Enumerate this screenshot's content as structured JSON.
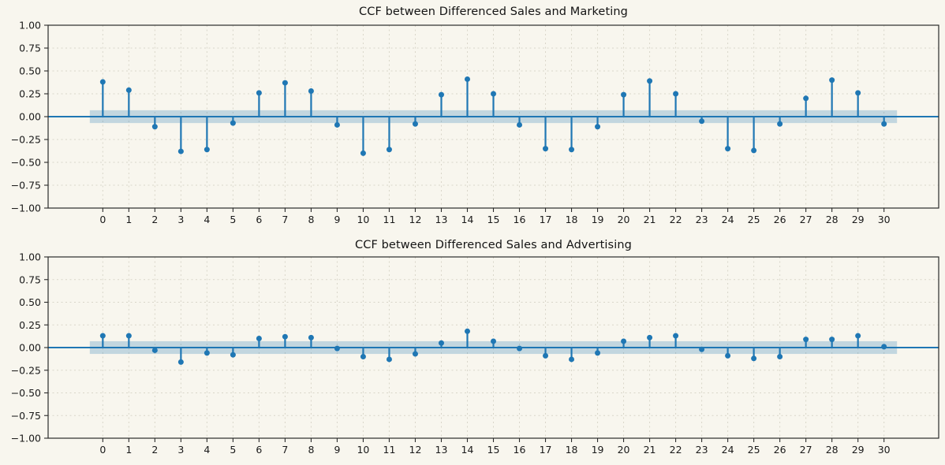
{
  "figure": {
    "background": "#f8f6ee",
    "accent": "#1f77b4",
    "band_color": "rgba(31,119,180,0.25)",
    "grid_color": "#d9d6c9",
    "axis_color": "#2b2b2b",
    "text_color": "#1a1a1a"
  },
  "chart_data": [
    {
      "type": "stem",
      "title": "CCF between Differenced Sales and Marketing",
      "x": [
        0,
        1,
        2,
        3,
        4,
        5,
        6,
        7,
        8,
        9,
        10,
        11,
        12,
        13,
        14,
        15,
        16,
        17,
        18,
        19,
        20,
        21,
        22,
        23,
        24,
        25,
        26,
        27,
        28,
        29,
        30
      ],
      "values": [
        0.38,
        0.29,
        -0.11,
        -0.38,
        -0.36,
        -0.07,
        0.26,
        0.37,
        0.28,
        -0.09,
        -0.4,
        -0.36,
        -0.08,
        0.24,
        0.41,
        0.25,
        -0.09,
        -0.35,
        -0.36,
        -0.11,
        0.24,
        0.39,
        0.25,
        -0.05,
        -0.35,
        -0.37,
        -0.08,
        0.2,
        0.4,
        0.26,
        -0.08
      ],
      "confidence_band": 0.07,
      "band_x_range": [
        -0.5,
        30.5
      ],
      "xlim": [
        -2.1,
        32.1
      ],
      "ylim": [
        -1.0,
        1.0
      ],
      "xticks": [
        0,
        1,
        2,
        3,
        4,
        5,
        6,
        7,
        8,
        9,
        10,
        11,
        12,
        13,
        14,
        15,
        16,
        17,
        18,
        19,
        20,
        21,
        22,
        23,
        24,
        25,
        26,
        27,
        28,
        29,
        30
      ],
      "yticks": [
        1.0,
        0.75,
        0.5,
        0.25,
        0,
        -0.25,
        -0.5,
        -0.75,
        -1.0
      ],
      "ytick_labels": [
        "1.00",
        "0.75",
        "0.50",
        "0.25",
        "0.00",
        "−0.25",
        "−0.50",
        "−0.75",
        "−1.00"
      ],
      "grid": true,
      "legend": false
    },
    {
      "type": "stem",
      "title": "CCF between Differenced Sales and Advertising",
      "x": [
        0,
        1,
        2,
        3,
        4,
        5,
        6,
        7,
        8,
        9,
        10,
        11,
        12,
        13,
        14,
        15,
        16,
        17,
        18,
        19,
        20,
        21,
        22,
        23,
        24,
        25,
        26,
        27,
        28,
        29,
        30
      ],
      "values": [
        0.13,
        0.13,
        -0.03,
        -0.16,
        -0.06,
        -0.08,
        0.1,
        0.12,
        0.11,
        -0.01,
        -0.1,
        -0.13,
        -0.07,
        0.05,
        0.18,
        0.07,
        -0.01,
        -0.09,
        -0.13,
        -0.06,
        0.07,
        0.11,
        0.13,
        -0.02,
        -0.09,
        -0.12,
        -0.1,
        0.09,
        0.09,
        0.13,
        0.01
      ],
      "confidence_band": 0.07,
      "band_x_range": [
        -0.5,
        30.5
      ],
      "xlim": [
        -2.1,
        32.1
      ],
      "ylim": [
        -1.0,
        1.0
      ],
      "xticks": [
        0,
        1,
        2,
        3,
        4,
        5,
        6,
        7,
        8,
        9,
        10,
        11,
        12,
        13,
        14,
        15,
        16,
        17,
        18,
        19,
        20,
        21,
        22,
        23,
        24,
        25,
        26,
        27,
        28,
        29,
        30
      ],
      "yticks": [
        1.0,
        0.75,
        0.5,
        0.25,
        0,
        -0.25,
        -0.5,
        -0.75,
        -1.0
      ],
      "ytick_labels": [
        "1.00",
        "0.75",
        "0.50",
        "0.25",
        "0.00",
        "−0.25",
        "−0.50",
        "−0.75",
        "−1.00"
      ],
      "grid": true,
      "legend": false
    }
  ]
}
